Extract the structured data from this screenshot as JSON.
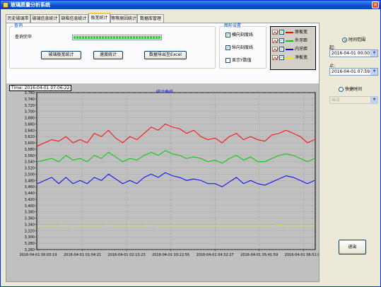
{
  "window": {
    "title": "玻璃质量分析系统",
    "close_glyph": "✕"
  },
  "tabs": [
    {
      "label": "历史玻璃带"
    },
    {
      "label": "玻璃信息统计"
    },
    {
      "label": "缺陷信息统计"
    },
    {
      "label": "板宽统计",
      "active": true
    },
    {
      "label": "等等原因统计"
    },
    {
      "label": "数据库管理"
    }
  ],
  "query": {
    "group_title": "查询",
    "status": "查询完毕",
    "progress_fraction": 1.0,
    "btn_stats": "玻璃板宽统计",
    "btn_speed": "速度统计",
    "btn_export": "数据导出至Excel"
  },
  "graph_settings": {
    "group_title": "图形设置",
    "h_grid": {
      "label": "横向刻度线",
      "checked": true
    },
    "v_grid": {
      "label": "纵向刻度线",
      "checked": true
    },
    "show_values": {
      "label": "显示Y数值",
      "checked": false
    }
  },
  "legend": [
    {
      "label": "原板宽",
      "color": "#ff0000",
      "checked": true
    },
    {
      "label": "外牙距",
      "color": "#00c800",
      "checked": true
    },
    {
      "label": "内牙距",
      "color": "#0000ff",
      "checked": true
    },
    {
      "label": "净板宽",
      "color": "#e8e800",
      "checked": true
    }
  ],
  "chart": {
    "time_label": "Time: 2016-04-01 07:06:22",
    "title": "统计曲线"
  },
  "chart_data": {
    "type": "line",
    "title": "统计曲线",
    "ylim": [
      3260,
      3760
    ],
    "y_ticks": [
      3260,
      3280,
      3300,
      3320,
      3340,
      3360,
      3380,
      3400,
      3420,
      3440,
      3460,
      3480,
      3500,
      3520,
      3540,
      3560,
      3580,
      3600,
      3620,
      3640,
      3660,
      3680,
      3700,
      3720,
      3740,
      3760
    ],
    "x_tick_labels": [
      "2016-04-01 00:00:19",
      "2016-04-01 01:04:21",
      "2016-04-01 02:13:23",
      "2016-04-01 03:22:55",
      "2016-04-01 04:32:27",
      "2016-04-01 05:41:59",
      "2016-04-01 06:51:01"
    ],
    "grid": true,
    "series": [
      {
        "name": "原板宽",
        "color": "#ff0000",
        "values": [
          3590,
          3600,
          3610,
          3605,
          3620,
          3600,
          3610,
          3600,
          3630,
          3620,
          3640,
          3615,
          3600,
          3620,
          3610,
          3630,
          3650,
          3640,
          3660,
          3650,
          3645,
          3630,
          3640,
          3620,
          3610,
          3615,
          3600,
          3620,
          3630,
          3610,
          3620,
          3610,
          3605,
          3625,
          3630,
          3640,
          3630,
          3620,
          3600,
          3610
        ]
      },
      {
        "name": "外牙距",
        "color": "#00c800",
        "values": [
          3540,
          3545,
          3550,
          3540,
          3560,
          3545,
          3550,
          3540,
          3560,
          3550,
          3570,
          3555,
          3540,
          3550,
          3545,
          3560,
          3570,
          3560,
          3575,
          3565,
          3560,
          3550,
          3555,
          3550,
          3540,
          3545,
          3535,
          3550,
          3560,
          3545,
          3555,
          3540,
          3540,
          3550,
          3560,
          3565,
          3560,
          3550,
          3540,
          3550
        ]
      },
      {
        "name": "内牙距",
        "color": "#0000ff",
        "values": [
          3470,
          3480,
          3490,
          3470,
          3490,
          3470,
          3480,
          3470,
          3490,
          3480,
          3500,
          3485,
          3470,
          3480,
          3470,
          3490,
          3500,
          3490,
          3505,
          3495,
          3490,
          3480,
          3485,
          3480,
          3470,
          3470,
          3460,
          3475,
          3490,
          3470,
          3480,
          3470,
          3465,
          3475,
          3485,
          3495,
          3490,
          3480,
          3470,
          3480
        ]
      },
      {
        "name": "净板宽",
        "color": "#e8e800",
        "values": [
          3335,
          3335,
          3335,
          3335,
          3336,
          3335,
          3335,
          3335,
          3335,
          3335,
          3336,
          3335,
          3335,
          3335,
          3335,
          3335,
          3336,
          3335,
          3335,
          3335,
          3335,
          3335,
          3335,
          3335,
          3335,
          3335,
          3335,
          3335,
          3335,
          3335,
          3335,
          3335,
          3335,
          3335,
          3337,
          3335,
          3335,
          3335,
          3335,
          3335
        ]
      }
    ]
  },
  "right_panel": {
    "time_range": {
      "label": "时间范围",
      "selected": true
    },
    "from_label": "起:",
    "from_value": "2016-04-01 00:00:00",
    "to_label": "止:",
    "to_value": "2016-04-01 07:59:59",
    "quick_time": {
      "label": "快捷时间",
      "selected": false
    },
    "quick_value": "当日",
    "exit_label": "退出",
    "dropdown_glyph": "▼"
  }
}
